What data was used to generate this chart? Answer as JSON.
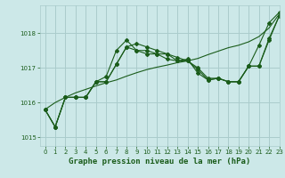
{
  "title": "Graphe pression niveau de la mer (hPa)",
  "bg_color": "#cce8e8",
  "grid_color": "#aacccc",
  "line_color": "#1a5c1a",
  "xlim": [
    -0.5,
    23
  ],
  "ylim": [
    1014.75,
    1018.8
  ],
  "yticks": [
    1015,
    1016,
    1017,
    1018
  ],
  "xticks": [
    0,
    1,
    2,
    3,
    4,
    5,
    6,
    7,
    8,
    9,
    10,
    11,
    12,
    13,
    14,
    15,
    16,
    17,
    18,
    19,
    20,
    21,
    22,
    23
  ],
  "series1": [
    1015.8,
    1015.3,
    1016.15,
    1016.15,
    1016.15,
    1016.6,
    1016.6,
    1017.1,
    1017.6,
    1017.5,
    1017.5,
    1017.4,
    1017.4,
    1017.2,
    1017.2,
    1016.95,
    1016.65,
    1016.7,
    1016.6,
    1016.6,
    1017.05,
    1017.05,
    1017.85,
    1018.5
  ],
  "series2": [
    1015.8,
    1015.3,
    1016.15,
    1016.15,
    1016.15,
    1016.6,
    1016.75,
    1017.5,
    1017.8,
    1017.5,
    1017.4,
    1017.4,
    1017.25,
    1017.2,
    1017.25,
    1016.85,
    1016.65,
    1016.7,
    1016.6,
    1016.6,
    1017.05,
    1017.65,
    1018.3,
    1018.6
  ],
  "series3": [
    1015.8,
    1015.3,
    1016.15,
    1016.15,
    1016.15,
    1016.6,
    1016.6,
    1017.1,
    1017.6,
    1017.7,
    1017.6,
    1017.5,
    1017.4,
    1017.3,
    1017.2,
    1017.0,
    1016.7,
    1016.7,
    1016.6,
    1016.6,
    1017.05,
    1017.05,
    1017.8,
    1018.5
  ],
  "series_linear": [
    1015.8,
    1016.0,
    1016.15,
    1016.28,
    1016.38,
    1016.48,
    1016.57,
    1016.65,
    1016.76,
    1016.86,
    1016.95,
    1017.02,
    1017.08,
    1017.15,
    1017.2,
    1017.27,
    1017.38,
    1017.48,
    1017.58,
    1017.65,
    1017.75,
    1017.9,
    1018.15,
    1018.55
  ]
}
